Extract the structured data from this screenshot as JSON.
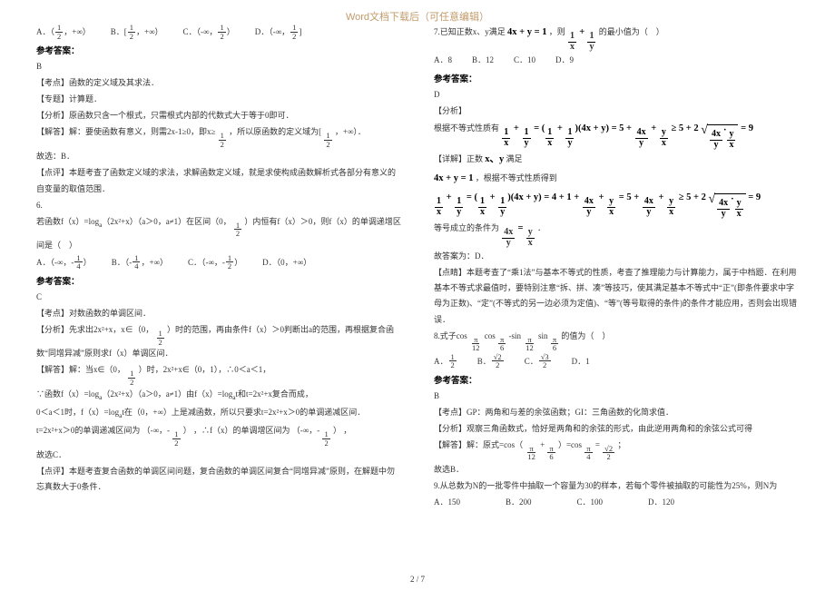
{
  "header": "Word文档下载后（可任意编辑）",
  "footer": "2 / 7",
  "left": {
    "q5_opts": {
      "A_pre": "A．（",
      "A_post": "，+∞）",
      "B_pre": "B．[",
      "B_post": "，+∞）",
      "C_pre": "C．（-∞，",
      "C_post": "）",
      "D_pre": "D．（-∞，",
      "D_post": "]",
      "frac_n": "1",
      "frac_d": "2"
    },
    "ans_label": "参考答案：",
    "q5_ans": "B",
    "q5_kd": "【考点】函数的定义域及其求法．",
    "q5_zt": "【专题】计算题．",
    "q5_fx": "【分析】原函数只含一个根式，只需根式内部的代数式大于等于0即可．",
    "q5_jd_a": "【解答】解：要使函数有意义，则需2x-1≥0，即x≥",
    "q5_jd_b": "，所以原函数的定义域为[",
    "q5_jd_c": "，+∞）．",
    "q5_gx": "故选：B．",
    "q5_dp": "【点评】本题考查了函数定义域的求法，求解函数定义域，就是求使构成函数解析式各部分有意义的自变量的取值范围．",
    "q6_no": "6.",
    "q6_stem_a": "若函数f（x）=log",
    "q6_stem_sub": "a",
    "q6_stem_b": "（2x²+x）（a＞0，a≠1）在区间（0，",
    "q6_stem_c": "）内恒有f（x）＞0，则f（x）的单调递增区间是（　）",
    "q6_opts": {
      "A_pre": "A．（-∞，-",
      "A_post": "）",
      "B_pre": "B．（-",
      "B_post": "，+∞）",
      "C_pre": "C．（-∞，-",
      "C_post": "）",
      "D": "D．（0，+∞）",
      "n14": "1",
      "d14": "4",
      "n12": "1",
      "d12": "2"
    },
    "q6_ans": "C",
    "q6_kd": "【考点】对数函数的单调区间．",
    "q6_fx_a": "【分析】先求出2x²+x，x∈（0，",
    "q6_fx_b": "）时的范围，再由条件f（x）＞0判断出a的范围，再根据复合函数“同增异减”原则求f（x）单调区间．",
    "q6_jd_a": "【解答】解：当x∈（0，",
    "q6_jd_b": "）时，2x²+x∈（0，1），∴0＜a＜1，",
    "q6_jd_c": "∵函数f（x）=log",
    "q6_jd_d": "（2x²+x）（a＞0，a≠1）由f（x）=log",
    "q6_jd_e": "t和t=2x²+x复合而成，",
    "q6_jd_f": "0＜a＜1时，f（x）=log",
    "q6_jd_g": "t在（0，+∞）上是减函数，所以只要求t=2x²+x＞0的单调递减区间．",
    "q6_jd_h": "t=2x²+x＞0的单调递减区间为",
    "q6_jd_i": "（-∞，-",
    "q6_jd_j": "）",
    "q6_jd_k": "，∴f（x）的单调增区间为",
    "q6_jd_l": "（-∞，-",
    "q6_jd_m": "）",
    "q6_jd_n": "，",
    "q6_gx": "故选C．",
    "q6_dp": "【点评】本题考查复合函数的单调区间问题，复合函数的单调区间复合“同增异减”原则，在解题中勿忘真数大于0条件．"
  },
  "right": {
    "q7_stem_a": "7.已知正数x、y满足",
    "q7_eq": "4x + y = 1",
    "q7_stem_b": "，则",
    "q7_frac1_n": "1",
    "q7_frac1_d": "x",
    "q7_plus": "+",
    "q7_frac2_n": "1",
    "q7_frac2_d": "y",
    "q7_stem_c": "的最小值为（　）",
    "q7_opts": {
      "A": "A．8",
      "B": "B．12",
      "C": "C．10",
      "D": "D．9"
    },
    "ans_label": "参考答案：",
    "q7_ans": "D",
    "q7_fx_lbl": "【分析】",
    "q7_fx_a": "根据不等式性质有",
    "q7_formula_long": "1/x + 1/y = (1/x + 1/y)(4x + y) = 5 + 4x/y + y/x ≥ 5 + 2√(4x/y · y/x) = 9",
    "q7_xj_lbl": "【详解】正数",
    "q7_xj_a": "x、y",
    "q7_xj_b": "满足",
    "q7_xj_c": "4x + y = 1",
    "q7_xj_d": "，根据不等式性质得到",
    "q7_eq2": "等号成立的条件为",
    "q7_eq2b_n": "4x",
    "q7_eq2b_d": "y",
    "q7_eq2c": "=",
    "q7_eq2d_n": "y",
    "q7_eq2d_d": "x",
    "q7_eq2e": "．",
    "q7_gx": "故答案为：D．",
    "q7_dj": "【点睛】本题考查了“乘1法”与基本不等式的性质，考查了推理能力与计算能力，属于中档题．在利用基本不等式求最值时，要特别注意“拆、拼、凑”等技巧，使其满足基本不等式中“正”(即条件要求中字母为正数)、“定”(不等式的另一边必须为定值)、“等”(等号取得的条件)的条件才能应用，否则会出现错误．",
    "q8_stem_a": "8.式子cos",
    "pi12_n": "π",
    "pi12_d": "12",
    "q8_stem_b": "cos",
    "pi6_n": "π",
    "pi6_d": "6",
    "q8_stem_c": "-sin",
    "q8_stem_d": "sin",
    "q8_stem_e": "的值为（　）",
    "q8_opts": {
      "A_pre": "A．",
      "A_n": "1",
      "A_d": "2",
      "B_pre": "B．",
      "B_n": "√2",
      "B_d": "2",
      "C_pre": "C．",
      "C_n": "√3",
      "C_d": "2",
      "D": "D．1"
    },
    "q8_ans": "B",
    "q8_kd": "【考点】GP：两角和与差的余弦函数；GI：三角函数的化简求值．",
    "q8_fx": "【分析】观察三角函数式，恰好是两角和的余弦的形式，由此逆用两角和的余弦公式可得",
    "q8_jd_a": "【解答】解：原式=cos（",
    "q8_jd_b": "+",
    "q8_jd_c": "）=cos",
    "pi4_n": "π",
    "pi4_d": "4",
    "q8_jd_d": "=",
    "q8_jd_e": "；",
    "q8_gx": "故选B．",
    "q9_stem": "9.从总数为N的一批零件中抽取一个容量为30的样本，若每个零件被抽取的可能性为25%，则N为",
    "q9_opts": {
      "A": "A．150",
      "B": "B．200",
      "C": "C．100",
      "D": "D．120"
    }
  }
}
